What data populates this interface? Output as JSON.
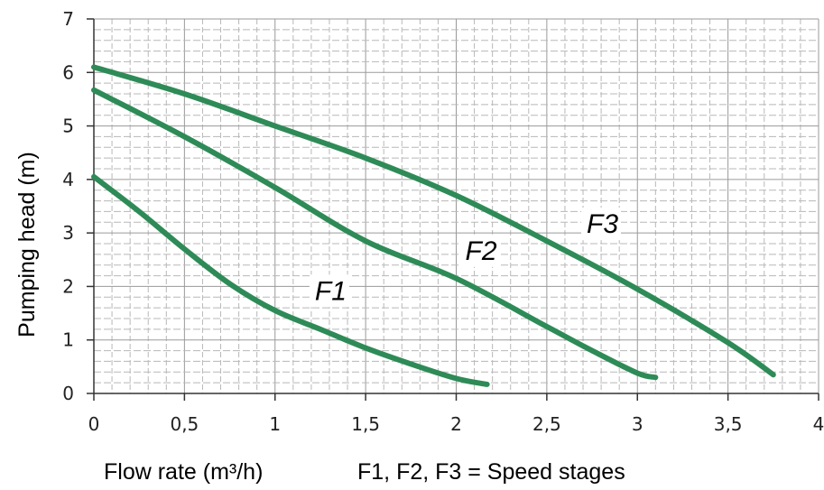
{
  "chart_data": {
    "type": "line",
    "xlabel": "Flow rate (m³/h)",
    "ylabel": "Pumping head (m)",
    "note": "F1, F2, F3 = Speed stages",
    "xlim": [
      0,
      4
    ],
    "ylim": [
      0,
      7
    ],
    "x_ticks": [
      "0",
      "0,5",
      "1",
      "1,5",
      "2",
      "2,5",
      "3",
      "3,5",
      "4"
    ],
    "y_ticks": [
      "0",
      "1",
      "2",
      "3",
      "4",
      "5",
      "6",
      "7"
    ],
    "grid": true,
    "line_color": "#2e8b57",
    "series": [
      {
        "name": "F1",
        "points": [
          [
            0,
            4.05
          ],
          [
            0.25,
            3.4
          ],
          [
            0.5,
            2.7
          ],
          [
            0.75,
            2.05
          ],
          [
            1.0,
            1.55
          ],
          [
            1.25,
            1.2
          ],
          [
            1.5,
            0.85
          ],
          [
            1.75,
            0.55
          ],
          [
            2.0,
            0.28
          ],
          [
            2.17,
            0.17
          ]
        ]
      },
      {
        "name": "F2",
        "points": [
          [
            0,
            5.67
          ],
          [
            0.5,
            4.8
          ],
          [
            1.0,
            3.85
          ],
          [
            1.5,
            2.85
          ],
          [
            2.0,
            2.15
          ],
          [
            2.5,
            1.25
          ],
          [
            2.75,
            0.8
          ],
          [
            3.0,
            0.38
          ],
          [
            3.1,
            0.3
          ]
        ]
      },
      {
        "name": "F3",
        "points": [
          [
            0,
            6.1
          ],
          [
            0.5,
            5.6
          ],
          [
            1.0,
            5.0
          ],
          [
            1.5,
            4.4
          ],
          [
            2.0,
            3.7
          ],
          [
            2.5,
            2.85
          ],
          [
            3.0,
            1.95
          ],
          [
            3.5,
            0.95
          ],
          [
            3.75,
            0.35
          ]
        ]
      }
    ]
  }
}
